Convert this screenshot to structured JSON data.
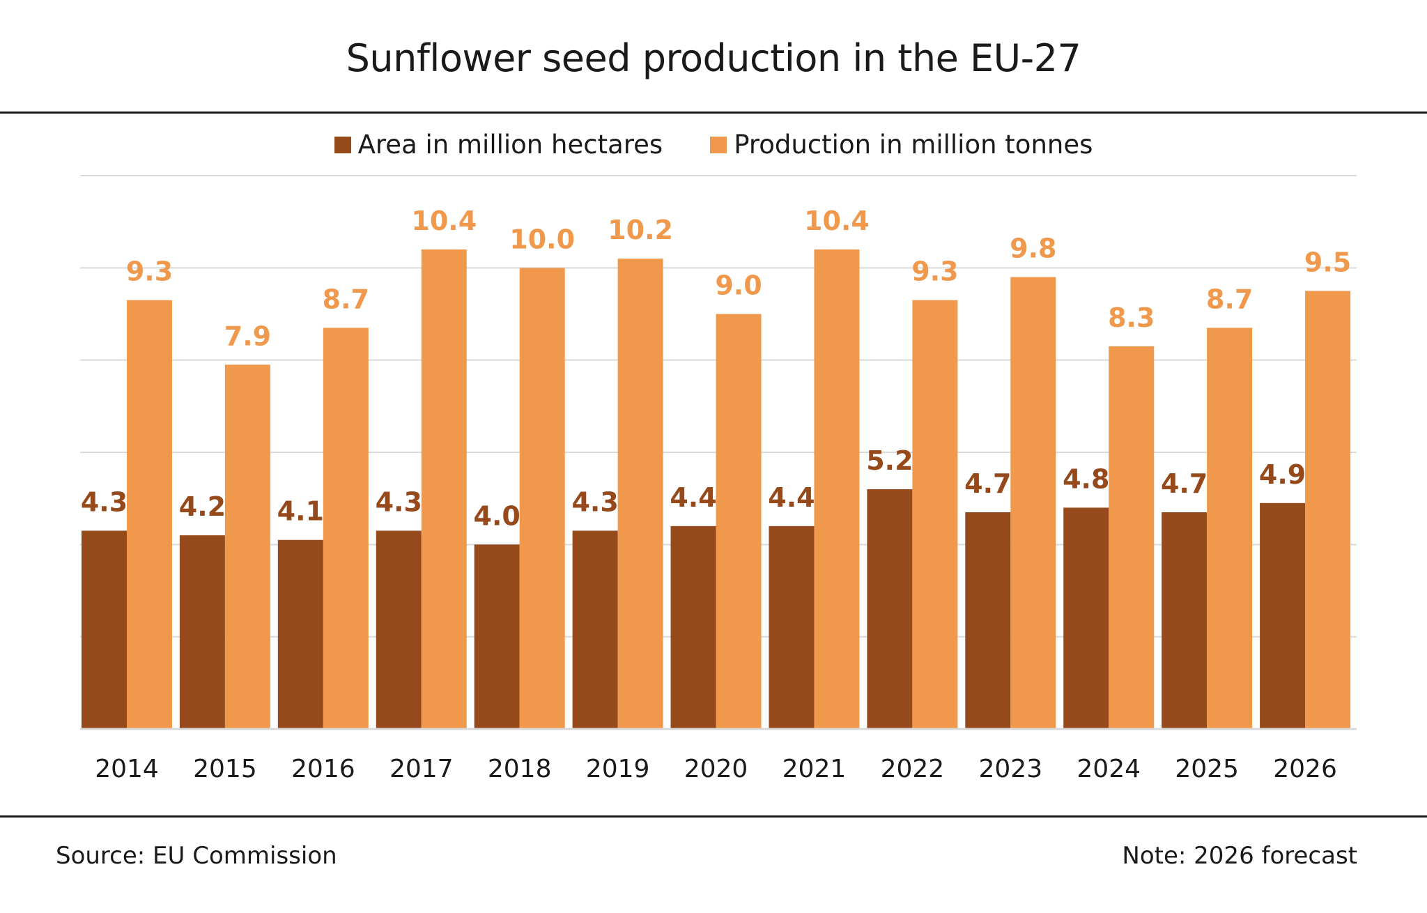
{
  "colors": {
    "area": "#96491b",
    "production": "#f0994c",
    "grid": "#d9d9d9",
    "axis": "#d9d9d9"
  },
  "chart_data": {
    "type": "bar",
    "title": "Sunflower seed production in the EU-27",
    "categories": [
      "2014",
      "2015",
      "2016",
      "2017",
      "2018",
      "2019",
      "2020",
      "2021",
      "2022",
      "2023",
      "2024",
      "2025",
      "2026"
    ],
    "series": [
      {
        "name": "Area in million hectares",
        "values": [
          4.3,
          4.2,
          4.1,
          4.3,
          4.0,
          4.3,
          4.4,
          4.4,
          5.2,
          4.7,
          4.8,
          4.7,
          4.9
        ]
      },
      {
        "name": "Production in million tonnes",
        "values": [
          9.3,
          7.9,
          8.7,
          10.4,
          10.0,
          10.2,
          9.0,
          10.4,
          9.3,
          9.8,
          8.3,
          8.7,
          9.5
        ]
      }
    ],
    "ylim": [
      0,
      12
    ],
    "grid": true,
    "legend": "top-center",
    "xlabel": "",
    "ylabel": ""
  },
  "footer": {
    "source": "Source:  EU Commission",
    "note": "Note: 2026 forecast"
  }
}
